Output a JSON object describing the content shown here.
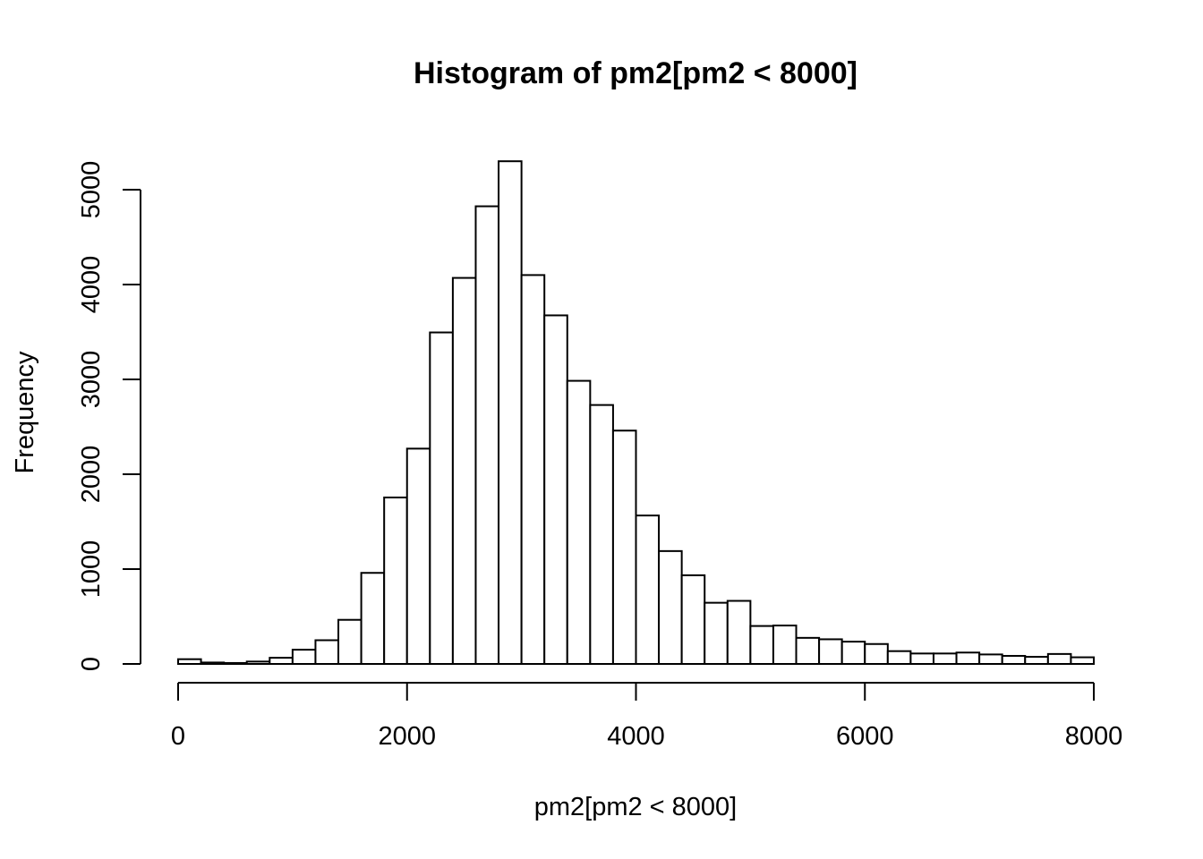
{
  "chart_data": {
    "type": "bar",
    "title": "Histogram of pm2[pm2 < 8000]",
    "xlabel": "pm2[pm2 < 8000]",
    "ylabel": "Frequency",
    "xlim": [
      0,
      8000
    ],
    "ylim": [
      0,
      5000
    ],
    "x_ticks": [
      "0",
      "2000",
      "4000",
      "6000",
      "8000"
    ],
    "y_ticks": [
      "0",
      "1000",
      "2000",
      "3000",
      "4000",
      "5000"
    ],
    "bin_width": 200,
    "bins": [
      {
        "start": 0,
        "end": 200,
        "count": 50
      },
      {
        "start": 200,
        "end": 400,
        "count": 15
      },
      {
        "start": 400,
        "end": 600,
        "count": 10
      },
      {
        "start": 600,
        "end": 800,
        "count": 25
      },
      {
        "start": 800,
        "end": 1000,
        "count": 65
      },
      {
        "start": 1000,
        "end": 1200,
        "count": 150
      },
      {
        "start": 1200,
        "end": 1400,
        "count": 250
      },
      {
        "start": 1400,
        "end": 1600,
        "count": 465
      },
      {
        "start": 1600,
        "end": 1800,
        "count": 960
      },
      {
        "start": 1800,
        "end": 2000,
        "count": 1755
      },
      {
        "start": 2000,
        "end": 2200,
        "count": 2270
      },
      {
        "start": 2200,
        "end": 2400,
        "count": 3495
      },
      {
        "start": 2400,
        "end": 2600,
        "count": 4070
      },
      {
        "start": 2600,
        "end": 2800,
        "count": 4825
      },
      {
        "start": 2800,
        "end": 3000,
        "count": 5300
      },
      {
        "start": 3000,
        "end": 3200,
        "count": 4100
      },
      {
        "start": 3200,
        "end": 3400,
        "count": 3675
      },
      {
        "start": 3400,
        "end": 3600,
        "count": 2985
      },
      {
        "start": 3600,
        "end": 3800,
        "count": 2730
      },
      {
        "start": 3800,
        "end": 4000,
        "count": 2460
      },
      {
        "start": 4000,
        "end": 4200,
        "count": 1565
      },
      {
        "start": 4200,
        "end": 4400,
        "count": 1190
      },
      {
        "start": 4400,
        "end": 4600,
        "count": 935
      },
      {
        "start": 4600,
        "end": 4800,
        "count": 645
      },
      {
        "start": 4800,
        "end": 5000,
        "count": 665
      },
      {
        "start": 5000,
        "end": 5200,
        "count": 400
      },
      {
        "start": 5200,
        "end": 5400,
        "count": 405
      },
      {
        "start": 5400,
        "end": 5600,
        "count": 275
      },
      {
        "start": 5600,
        "end": 5800,
        "count": 260
      },
      {
        "start": 5800,
        "end": 6000,
        "count": 235
      },
      {
        "start": 6000,
        "end": 6200,
        "count": 210
      },
      {
        "start": 6200,
        "end": 6400,
        "count": 135
      },
      {
        "start": 6400,
        "end": 6600,
        "count": 110
      },
      {
        "start": 6600,
        "end": 6800,
        "count": 110
      },
      {
        "start": 6800,
        "end": 7000,
        "count": 120
      },
      {
        "start": 7000,
        "end": 7200,
        "count": 100
      },
      {
        "start": 7200,
        "end": 7400,
        "count": 85
      },
      {
        "start": 7400,
        "end": 7600,
        "count": 75
      },
      {
        "start": 7600,
        "end": 7800,
        "count": 105
      },
      {
        "start": 7800,
        "end": 8000,
        "count": 70
      }
    ],
    "bar_fill": "#ffffff",
    "bar_stroke": "#000000",
    "grid": false,
    "legend": "none"
  }
}
